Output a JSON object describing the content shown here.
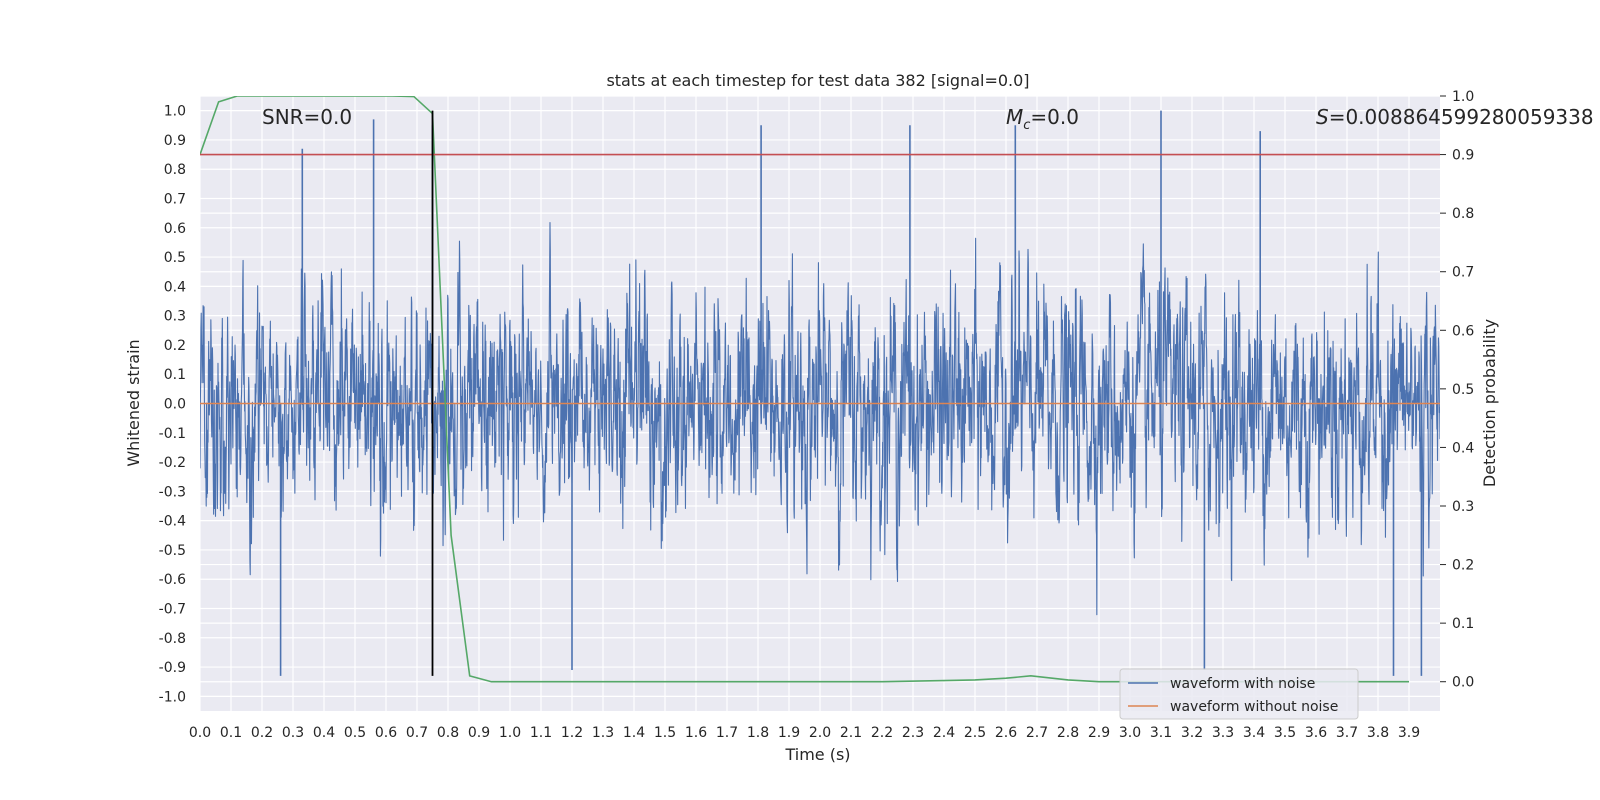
{
  "chart_data": {
    "type": "line",
    "title": "stats at each timestep for test data 382 [signal=0.0]",
    "xlabel": "Time (s)",
    "ylabel": "Whitened strain",
    "ylabel_right": "Detection probability",
    "xlim": [
      0.0,
      4.0
    ],
    "ylim": [
      -1.05,
      1.05
    ],
    "ylim_right": [
      -0.05,
      1.0
    ],
    "x_ticks": [
      0.0,
      0.1,
      0.2,
      0.3,
      0.4,
      0.5,
      0.6,
      0.7,
      0.8,
      0.9,
      1.0,
      1.1,
      1.2,
      1.3,
      1.4,
      1.5,
      1.6,
      1.7,
      1.8,
      1.9,
      2.0,
      2.1,
      2.2,
      2.3,
      2.4,
      2.5,
      2.6,
      2.7,
      2.8,
      2.9,
      3.0,
      3.1,
      3.2,
      3.3,
      3.4,
      3.5,
      3.6,
      3.7,
      3.8,
      3.9
    ],
    "x_tick_labels": [
      "0.0",
      "0.1",
      "0.2",
      "0.3",
      "0.4",
      "0.5",
      "0.6",
      "0.7",
      "0.8",
      "0.9",
      "1.0",
      "1.1",
      "1.2",
      "1.3",
      "1.4",
      "1.5",
      "1.6",
      "1.7",
      "1.8",
      "1.9",
      "2.0",
      "2.1",
      "2.2",
      "2.3",
      "2.4",
      "2.5",
      "2.6",
      "2.7",
      "2.8",
      "2.9",
      "3.0",
      "3.1",
      "3.2",
      "3.3",
      "3.4",
      "3.5",
      "3.6",
      "3.7",
      "3.8",
      "3.9"
    ],
    "y_ticks": [
      1.0,
      0.9,
      0.8,
      0.7,
      0.6,
      0.5,
      0.4,
      0.3,
      0.2,
      0.1,
      0.0,
      -0.1,
      -0.2,
      -0.3,
      -0.4,
      -0.5,
      -0.6,
      -0.7,
      -0.8,
      -0.9,
      -1.0
    ],
    "y_tick_labels": [
      "1.0",
      "0.9",
      "0.8",
      "0.7",
      "0.6",
      "0.5",
      "0.4",
      "0.3",
      "0.2",
      "0.1",
      "0.0",
      "-0.1",
      "-0.2",
      "-0.3",
      "-0.4",
      "-0.5",
      "-0.6",
      "-0.7",
      "-0.8",
      "-0.9",
      "-1.0"
    ],
    "y_ticks_right": [
      1.0,
      0.9,
      0.8,
      0.7,
      0.6,
      0.5,
      0.4,
      0.3,
      0.2,
      0.1,
      0.0
    ],
    "y_tick_labels_right": [
      "1.0",
      "0.9",
      "0.8",
      "0.7",
      "0.6",
      "0.5",
      "0.4",
      "0.3",
      "0.2",
      "0.1",
      "0.0"
    ],
    "grid": true,
    "legend_position": "lower-right",
    "legend": [
      "waveform with noise",
      "waveform without noise"
    ],
    "annotations": {
      "snr": "SNR=0.0",
      "mc_symbol": "M",
      "mc_sub": "c",
      "mc_value": "=0.0",
      "s_symbol": "S",
      "s_value": "=0.008864599280059338"
    },
    "series": [
      {
        "name": "waveform with noise",
        "axis": "left",
        "color": "#4c72b0",
        "x_range": [
          0.0,
          4.0
        ],
        "style": "dense noise",
        "amplitude_max": 1.0,
        "amplitude_min": -1.0,
        "peaks": [
          {
            "x": 0.26,
            "y": -0.93
          },
          {
            "x": 0.33,
            "y": 0.87
          },
          {
            "x": 0.56,
            "y": 0.97
          },
          {
            "x": 0.75,
            "y": 0.95
          },
          {
            "x": 1.2,
            "y": -0.91
          },
          {
            "x": 1.81,
            "y": 0.95
          },
          {
            "x": 2.29,
            "y": 0.95
          },
          {
            "x": 2.63,
            "y": 0.95
          },
          {
            "x": 3.1,
            "y": 1.0
          },
          {
            "x": 3.24,
            "y": -0.91
          },
          {
            "x": 3.42,
            "y": 0.93
          },
          {
            "x": 3.85,
            "y": -0.93
          },
          {
            "x": 3.94,
            "y": -0.93
          }
        ]
      },
      {
        "name": "waveform without noise",
        "axis": "left",
        "color": "#dd8452",
        "x": [
          0.0,
          4.0
        ],
        "y": [
          0.0,
          0.0
        ]
      },
      {
        "axis": "right",
        "color": "#55a868",
        "x": [
          0.0,
          0.06,
          0.12,
          0.19,
          0.25,
          0.31,
          0.37,
          0.44,
          0.5,
          0.56,
          0.62,
          0.69,
          0.75,
          0.81,
          0.87,
          0.94,
          1.0,
          1.5,
          2.0,
          2.2,
          2.4,
          2.5,
          2.6,
          2.68,
          2.8,
          2.9,
          3.0,
          3.2,
          3.5,
          3.9
        ],
        "y": [
          0.9,
          0.99,
          1.0,
          1.0,
          1.0,
          1.0,
          1.0,
          1.0,
          1.0,
          1.0,
          1.0,
          0.999,
          0.97,
          0.25,
          0.01,
          0.0,
          0.0,
          0.0,
          0.0,
          0.0,
          0.002,
          0.003,
          0.006,
          0.01,
          0.003,
          0.0,
          0.0,
          0.0,
          0.0,
          0.0
        ]
      },
      {
        "axis": "right",
        "color": "#c44e52",
        "x": [
          0.0,
          4.0
        ],
        "y": [
          0.9,
          0.9
        ]
      },
      {
        "axis": "left",
        "color": "#000000",
        "x": [
          0.75,
          0.75
        ],
        "y": [
          -0.93,
          1.0
        ]
      }
    ]
  }
}
